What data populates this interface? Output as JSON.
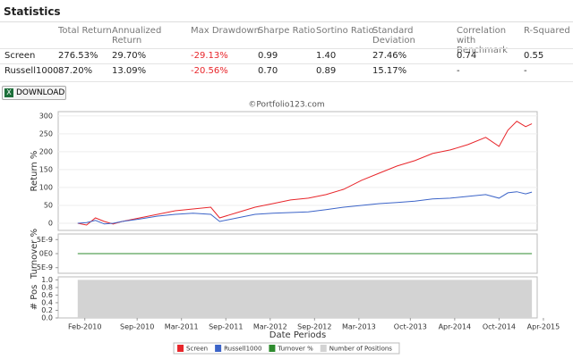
{
  "statistics": {
    "title": "Statistics",
    "columns": [
      "Total Return",
      "Annualized Return",
      "Max Drawdown",
      "Sharpe Ratio",
      "Sortino Ratio",
      "Standard Deviation",
      "Correlation with Benchmark",
      "R-Squared"
    ],
    "rows": [
      [
        "Screen",
        "276.53%",
        "29.70%",
        "-29.13%",
        "0.99",
        "1.40",
        "27.46%",
        "0.74",
        "0.55"
      ],
      [
        "Russell1000",
        "87.20%",
        "13.09%",
        "-20.56%",
        "0.70",
        "0.89",
        "15.17%",
        "-",
        "-"
      ]
    ]
  },
  "download": "DOWNLOAD",
  "chart_data": [
    {
      "type": "line",
      "title": "©Portfolio123.com",
      "y_label": "Return %",
      "x": [
        2010.0,
        2010.1,
        2010.2,
        2010.3,
        2010.4,
        2010.5,
        2010.7,
        2010.9,
        2011.1,
        2011.3,
        2011.5,
        2011.6,
        2011.8,
        2012.0,
        2012.2,
        2012.4,
        2012.6,
        2012.8,
        2013.0,
        2013.2,
        2013.4,
        2013.6,
        2013.8,
        2014.0,
        2014.2,
        2014.4,
        2014.6,
        2014.75,
        2014.85,
        2014.95,
        2015.05,
        2015.12
      ],
      "series": [
        {
          "name": "Screen",
          "color": "#e8262b",
          "values": [
            0,
            -5,
            15,
            5,
            -2,
            5,
            15,
            25,
            35,
            40,
            45,
            15,
            30,
            45,
            55,
            65,
            70,
            80,
            95,
            120,
            140,
            160,
            175,
            195,
            205,
            220,
            240,
            215,
            260,
            285,
            270,
            278
          ]
        },
        {
          "name": "Russell1000",
          "color": "#3c64c8",
          "values": [
            0,
            2,
            8,
            -2,
            0,
            5,
            12,
            20,
            25,
            28,
            25,
            5,
            15,
            25,
            28,
            30,
            32,
            38,
            45,
            50,
            55,
            58,
            62,
            68,
            70,
            75,
            80,
            70,
            85,
            88,
            82,
            87
          ]
        }
      ],
      "xlim": [
        2009.78,
        2015.18
      ],
      "ylim": [
        -20,
        312
      ],
      "yticks": [
        0,
        50,
        100,
        150,
        200,
        250,
        300
      ],
      "grid": true
    },
    {
      "type": "line",
      "y_label": "Turnover %",
      "x": [
        2010.0,
        2015.12
      ],
      "series": [
        {
          "name": "Turnover %",
          "color": "#2e8b2e",
          "values": [
            0,
            0
          ]
        }
      ],
      "xlim": [
        2009.78,
        2015.18
      ],
      "ylim": [
        -7e-09,
        7e-09
      ],
      "yticks": [
        {
          "value": -5e-09,
          "label": "-5E-9"
        },
        {
          "value": 0,
          "label": "0E0"
        },
        {
          "value": 5e-09,
          "label": "5E-9"
        }
      ]
    },
    {
      "type": "area",
      "y_label": "# Pos",
      "x_label": "Date Periods",
      "x": [
        2010.0,
        2015.12
      ],
      "series": [
        {
          "name": "Number of Positions",
          "color": "#d3d3d3",
          "values": [
            1,
            1
          ]
        }
      ],
      "xlim": [
        2009.78,
        2015.18
      ],
      "ylim": [
        0,
        1.08
      ],
      "yticks": [
        {
          "value": 0,
          "label": "0.0"
        },
        0.2,
        0.4,
        0.6,
        0.8,
        {
          "value": 1,
          "label": "1.0"
        }
      ],
      "xticks": [
        {
          "value": 2010.08,
          "label": "Feb-2010"
        },
        {
          "value": 2010.67,
          "label": "Sep-2010"
        },
        {
          "value": 2011.17,
          "label": "Mar-2011"
        },
        {
          "value": 2011.67,
          "label": "Sep-2011"
        },
        {
          "value": 2012.17,
          "label": "Mar-2012"
        },
        {
          "value": 2012.67,
          "label": "Sep-2012"
        },
        {
          "value": 2013.17,
          "label": "Mar-2013"
        },
        {
          "value": 2013.75,
          "label": "Oct-2013"
        },
        {
          "value": 2014.25,
          "label": "Apr-2014"
        },
        {
          "value": 2014.75,
          "label": "Oct-2014"
        },
        {
          "value": 2015.25,
          "label": "Apr-2015"
        }
      ]
    }
  ]
}
